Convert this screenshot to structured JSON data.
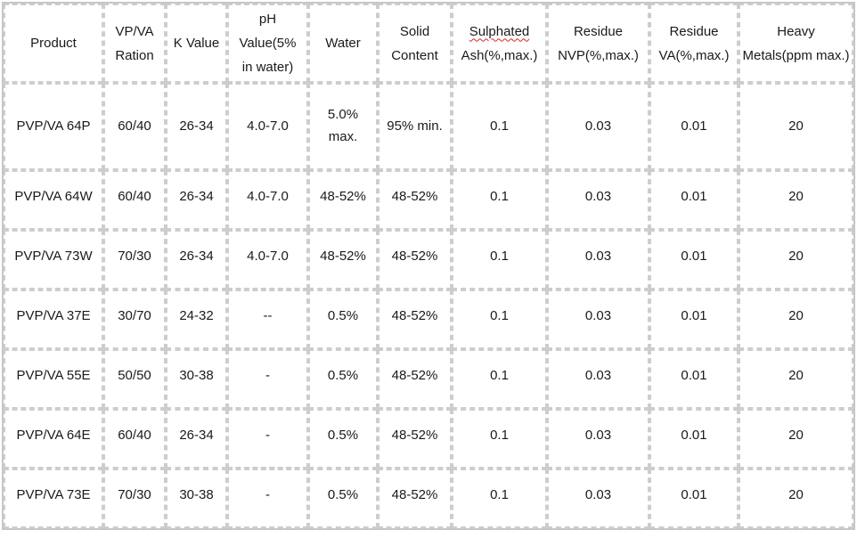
{
  "style": {
    "outer_border_color": "#c6c6c6",
    "grid_border_color": "#cdcdcd",
    "text_color": "#1a1a1a",
    "background_color": "#ffffff",
    "spellcheck_underline_color": "#ce2a21"
  },
  "table": {
    "headers": [
      {
        "lines": [
          "Product"
        ]
      },
      {
        "lines": [
          "VP/VA",
          "Ration"
        ]
      },
      {
        "lines": [
          "K Value"
        ]
      },
      {
        "lines": [
          "pH Value(5%",
          "in water)"
        ]
      },
      {
        "lines": [
          "Water"
        ]
      },
      {
        "lines": [
          "Solid",
          "Content"
        ]
      },
      {
        "lines": [
          "Sulphated",
          "Ash(%,max.)"
        ],
        "spellcheck_flagged": true
      },
      {
        "lines": [
          "Residue",
          "NVP(%,max.)"
        ]
      },
      {
        "lines": [
          "Residue",
          "VA(%,max.)"
        ]
      },
      {
        "lines": [
          "Heavy",
          "Metals(ppm max.)"
        ]
      }
    ],
    "rows": [
      [
        "PVP/VA 64P",
        "60/40",
        "26-34",
        "4.0-7.0",
        "5.0% max.",
        "95% min.",
        "0.1",
        "0.03",
        "0.01",
        "20"
      ],
      [
        "PVP/VA 64W",
        "60/40",
        "26-34",
        "4.0-7.0",
        "48-52%",
        "48-52%",
        "0.1",
        "0.03",
        "0.01",
        "20"
      ],
      [
        "PVP/VA 73W",
        "70/30",
        "26-34",
        "4.0-7.0",
        "48-52%",
        "48-52%",
        "0.1",
        "0.03",
        "0.01",
        "20"
      ],
      [
        "PVP/VA 37E",
        "30/70",
        "24-32",
        "--",
        "0.5%",
        "48-52%",
        "0.1",
        "0.03",
        "0.01",
        "20"
      ],
      [
        "PVP/VA 55E",
        "50/50",
        "30-38",
        "-",
        "0.5%",
        "48-52%",
        "0.1",
        "0.03",
        "0.01",
        "20"
      ],
      [
        "PVP/VA 64E",
        "60/40",
        "26-34",
        "-",
        "0.5%",
        "48-52%",
        "0.1",
        "0.03",
        "0.01",
        "20"
      ],
      [
        "PVP/VA 73E",
        "70/30",
        "30-38",
        "-",
        "0.5%",
        "48-52%",
        "0.1",
        "0.03",
        "0.01",
        "20"
      ]
    ]
  }
}
